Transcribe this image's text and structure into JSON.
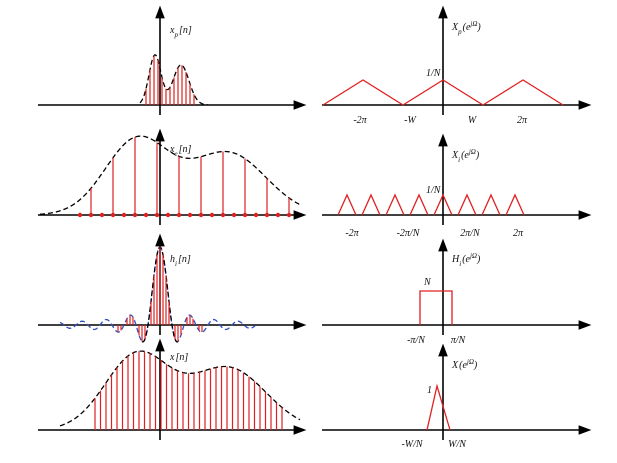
{
  "left": [
    {
      "label": {
        "base": "x",
        "sub": "p",
        "arg": "[n]"
      }
    },
    {
      "label": {
        "base": "x",
        "sub": "e",
        "arg": "[n]"
      }
    },
    {
      "label": {
        "base": "h",
        "sub": "i",
        "arg": "[n]"
      }
    },
    {
      "label": {
        "base": "x",
        "sub": "",
        "arg": "[n]"
      }
    }
  ],
  "right": [
    {
      "label": {
        "base": "X",
        "sub": "p",
        "open": "(e",
        "sup": "jΩ",
        "close": ")"
      },
      "height_label": "1/N",
      "ticks": [
        "-2π",
        "-W",
        "W",
        "2π"
      ]
    },
    {
      "label": {
        "base": "X",
        "sub": "i",
        "open": "(e",
        "sup": "jΩ",
        "close": ")"
      },
      "height_label": "1/N",
      "ticks": [
        "-2π",
        "-2π/N",
        "2π/N",
        "2π"
      ]
    },
    {
      "label": {
        "base": "H",
        "sub": "i",
        "open": "(e",
        "sup": "jΩ",
        "close": ")"
      },
      "height_label": "N",
      "ticks": [
        "-π/N",
        "π/N"
      ]
    },
    {
      "label": {
        "base": "X",
        "sub": "",
        "open": "(e",
        "sup": "jΩ",
        "close": ")"
      },
      "height_label": "1",
      "ticks": [
        "-W/N",
        "W/N"
      ]
    }
  ]
}
